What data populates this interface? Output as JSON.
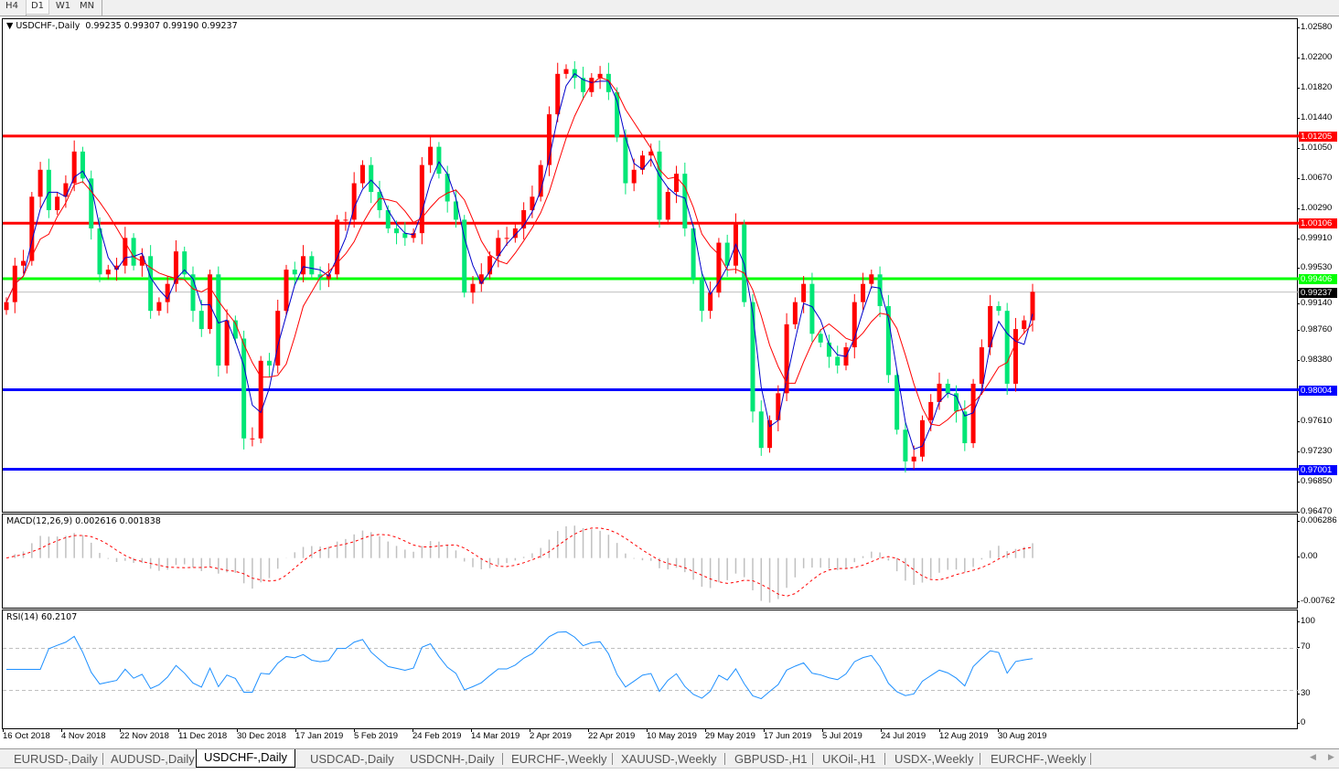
{
  "toolbar": {
    "timeframes": [
      "H4",
      "D1",
      "W1",
      "MN"
    ],
    "active": "D1"
  },
  "main": {
    "symbol_label": "USDCHF-,Daily",
    "ohlc": "0.99235 0.99307 0.99190 0.99237"
  },
  "price_axis": [
    "1.02580",
    "1.02200",
    "1.01820",
    "1.01440",
    "1.01050",
    "1.00670",
    "1.00290",
    "0.99910",
    "0.99530",
    "0.99140",
    "0.98760",
    "0.98380",
    "0.97610",
    "0.97230",
    "0.96850",
    "0.96470"
  ],
  "levels": [
    {
      "price": "1.01205",
      "color": "#ff0000"
    },
    {
      "price": "1.00106",
      "color": "#ff0000"
    },
    {
      "price": "0.99406",
      "color": "#00ff00"
    },
    {
      "price": "0.98004",
      "color": "#0000ff"
    },
    {
      "price": "0.97001",
      "color": "#0000ff"
    }
  ],
  "bid": {
    "price": "0.99237",
    "color": "#000000"
  },
  "macd": {
    "label": "MACD(12,26,9) 0.002616 0.001838",
    "axis": [
      "0.006286",
      "0.00",
      "-0.00762"
    ]
  },
  "rsi": {
    "label": "RSI(14) 60.2107",
    "axis": [
      "100",
      "70",
      "30",
      "0"
    ],
    "levels": [
      70,
      30
    ]
  },
  "dates": [
    "16 Oct 2018",
    "4 Nov 2018",
    "22 Nov 2018",
    "11 Dec 2018",
    "30 Dec 2018",
    "17 Jan 2019",
    "5 Feb 2019",
    "24 Feb 2019",
    "14 Mar 2019",
    "2 Apr 2019",
    "22 Apr 2019",
    "10 May 2019",
    "29 May 2019",
    "17 Jun 2019",
    "5 Jul 2019",
    "24 Jul 2019",
    "12 Aug 2019",
    "30 Aug 2019"
  ],
  "tabs": [
    "EURUSD-,Daily",
    "AUDUSD-,Daily",
    "USDCHF-,Daily",
    "USDCAD-,Daily",
    "USDCNH-,Daily",
    "EURCHF-,Weekly",
    "XAUUSD-,Weekly",
    "GBPUSD-,H1",
    "UKOil-,H1",
    "USDX-,Weekly",
    "EURCHF-,Weekly"
  ],
  "active_tab": "USDCHF-,Daily",
  "chart_data": {
    "type": "candlestick",
    "symbol": "USDCHF",
    "ylim": [
      0.96465,
      1.0268
    ],
    "colors": {
      "up": "#ff0000",
      "down": "#00e676",
      "ma_fast": "#0000cc",
      "ma_slow": "#ff0000"
    },
    "x_range": [
      "16 Oct 2018",
      "13 Sep 2019"
    ],
    "close": [
      0.9911,
      0.9957,
      0.9963,
      1.0044,
      1.0078,
      1.0027,
      1.0044,
      1.0061,
      1.0101,
      1.0067,
      1.0004,
      0.9946,
      0.9952,
      0.9957,
      0.9992,
      0.9957,
      0.9969,
      0.99,
      0.9911,
      0.9934,
      0.9975,
      0.9946,
      0.99,
      0.9877,
      0.9946,
      0.9831,
      0.9888,
      0.9865,
      0.9739,
      0.9739,
      0.9837,
      0.9831,
      0.99,
      0.9952,
      0.9946,
      0.9969,
      0.9946,
      0.994,
      0.9946,
      1.0015,
      1.0015,
      1.0061,
      1.0084,
      1.005,
      1.0027,
      1.0004,
      0.9998,
      0.9992,
      0.9998,
      1.0084,
      1.0107,
      1.0073,
      1.0038,
      1.0015,
      0.9923,
      0.9934,
      0.9946,
      0.9969,
      0.9992,
      0.9992,
      1.0004,
      1.0027,
      1.0044,
      1.0084,
      1.0148,
      1.0199,
      1.0205,
      1.0194,
      1.0176,
      1.0194,
      1.0199,
      1.0176,
      1.0119,
      1.0061,
      1.0078,
      1.0096,
      1.0101,
      1.0015,
      1.005,
      1.0073,
      1.0004,
      0.994,
      0.99,
      0.9923,
      0.9986,
      0.9957,
      1.0009,
      0.9911,
      0.9773,
      0.9727,
      0.9762,
      0.9796,
      0.9883,
      0.9911,
      0.9934,
      0.9871,
      0.986,
      0.9842,
      0.9831,
      0.9854,
      0.9911,
      0.9934,
      0.9946,
      0.9906,
      0.9819,
      0.975,
      0.971,
      0.9716,
      0.9762,
      0.9785,
      0.9808,
      0.9796,
      0.9773,
      0.9733,
      0.9808,
      0.9854,
      0.9906,
      0.99,
      0.9808,
      0.9877,
      0.9888,
      0.9924
    ]
  }
}
